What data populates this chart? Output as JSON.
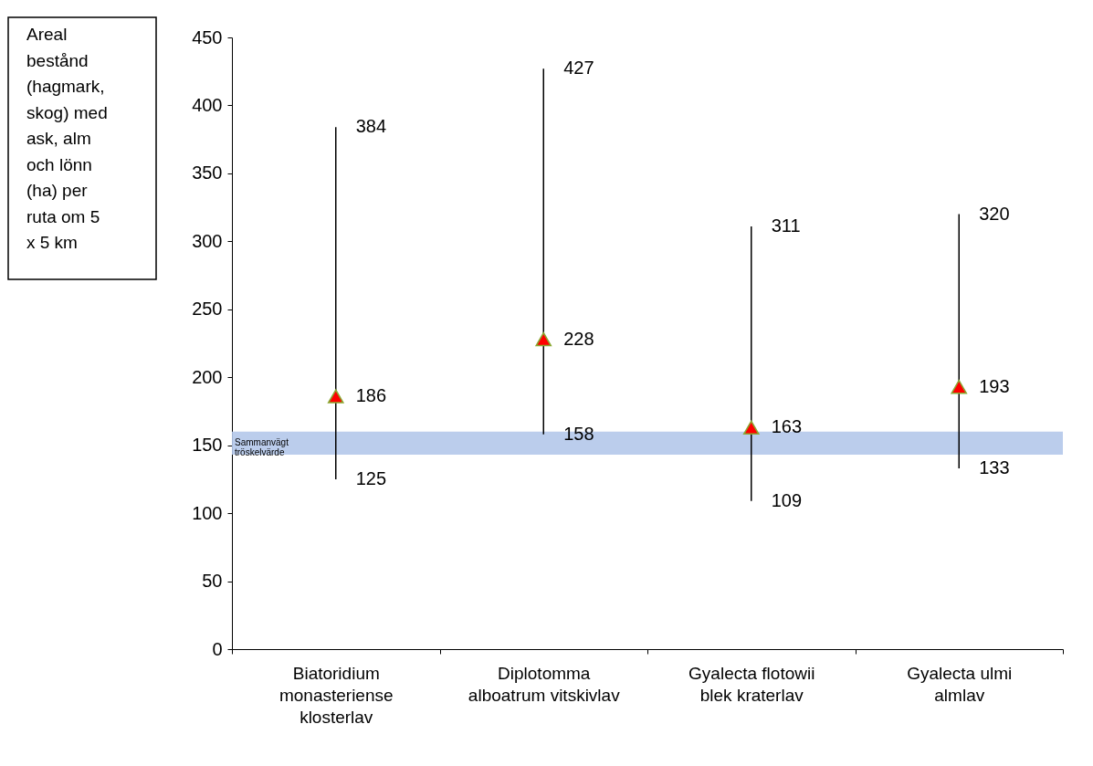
{
  "chart_data": {
    "type": "scatter",
    "ylabel": "Areal bestånd (hagmark, skog) med ask, alm och lönn (ha) per ruta om 5 x 5 km",
    "categories": [
      "Biatoridium\nmonasteriense\nklosterlav",
      "Diplotomma\nalboatrum  vitskivlav",
      "Gyalecta flotowii\nblek kraterlav",
      "Gyalecta ulmi\nalmlav"
    ],
    "series": [
      {
        "color": "#ff0000",
        "values": [
          186,
          228,
          163,
          193
        ],
        "errors": [
          [
            125,
            384
          ],
          [
            158,
            427
          ],
          [
            109,
            311
          ],
          [
            133,
            320
          ]
        ]
      }
    ],
    "data_labels": true,
    "marker": "triangle",
    "ylim": [
      0,
      450
    ],
    "yticks": [
      0,
      50,
      100,
      150,
      200,
      250,
      300,
      350,
      400,
      450
    ],
    "bands": [
      {
        "axis": "y",
        "from": 143,
        "to": 160,
        "label": "Sammanvägt\ntröskelvärde",
        "color": "#b4c8ea"
      }
    ],
    "annotations": [
      {
        "text": "384",
        "x": "Biatoridium\nmonasteriense\nklosterlav",
        "y": 384
      },
      {
        "text": "125",
        "x": "Biatoridium\nmonasteriense\nklosterlav",
        "y": 125
      },
      {
        "text": "427",
        "x": "Diplotomma\nalboatrum  vitskivlav",
        "y": 427
      },
      {
        "text": "158",
        "x": "Diplotomma\nalboatrum  vitskivlav",
        "y": 158
      },
      {
        "text": "311",
        "x": "Gyalecta flotowii\nblek kraterlav",
        "y": 311
      },
      {
        "text": "109",
        "x": "Gyalecta flotowii\nblek kraterlav",
        "y": 109
      },
      {
        "text": "320",
        "x": "Gyalecta ulmi\nalmlav",
        "y": 320
      },
      {
        "text": "133",
        "x": "Gyalecta ulmi\nalmlav",
        "y": 133
      }
    ],
    "grid": false
  }
}
